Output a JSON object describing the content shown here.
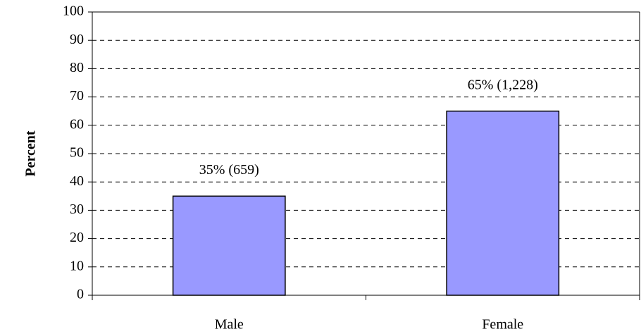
{
  "chart_data": {
    "type": "bar",
    "y_axis_label": "Percent",
    "categories": [
      "Male",
      "Female"
    ],
    "values": [
      35,
      65
    ],
    "value_labels": [
      "35% (659)",
      "65% (1,228)"
    ],
    "color": "#9999ff",
    "ylim": [
      0,
      100
    ],
    "yticks": [
      0,
      10,
      20,
      30,
      40,
      50,
      60,
      70,
      80,
      90,
      100
    ],
    "grid": true
  }
}
